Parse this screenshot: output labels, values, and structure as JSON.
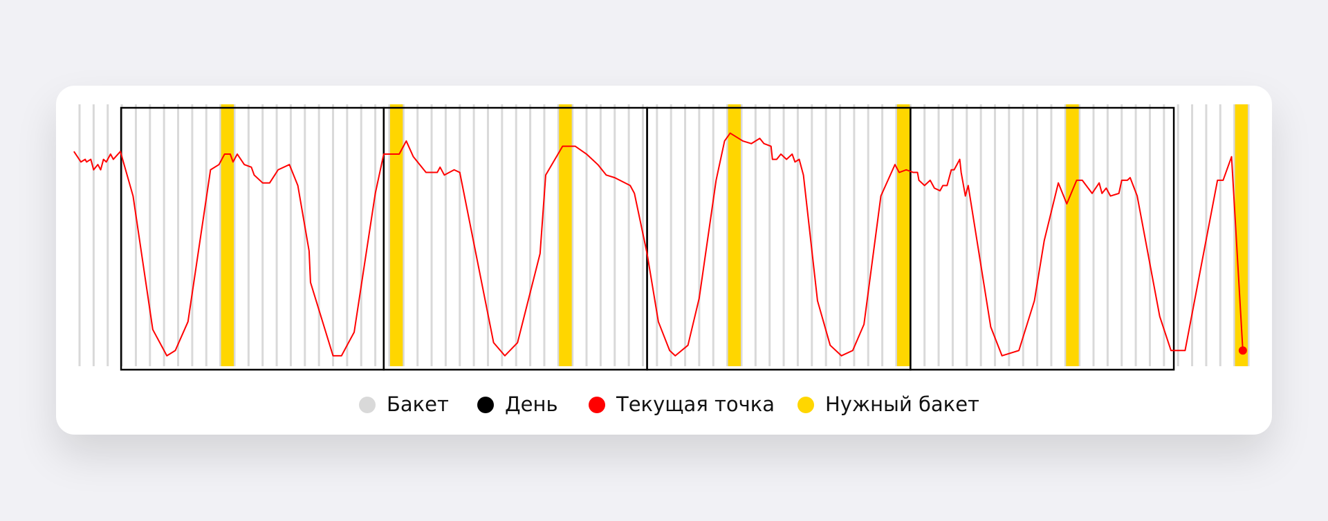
{
  "chart_data": {
    "type": "line",
    "bucket_count": 83,
    "bucket_color": "#d9d9d9",
    "target_buckets": [
      10,
      22,
      34,
      46,
      58,
      70,
      82
    ],
    "target_color": "#ffd600",
    "days": [
      [
        2.95,
        21.6
      ],
      [
        21.6,
        40.3
      ],
      [
        40.3,
        59
      ],
      [
        59,
        77.7
      ]
    ],
    "day_color": "#000000",
    "xlim": [
      0,
      83
    ],
    "ylim": [
      0,
      100
    ],
    "series": [
      {
        "name": "Текущая точка",
        "color": "#ff0000",
        "x": [
          -0.4,
          0.1,
          0.4,
          0.5,
          0.8,
          1.0,
          1.3,
          1.5,
          1.7,
          1.9,
          2.2,
          2.4,
          2.9,
          3.8,
          5.2,
          6.2,
          6.8,
          7.7,
          9.3,
          9.9,
          10.3,
          10.7,
          10.9,
          11.2,
          11.7,
          12.2,
          12.4,
          13.0,
          13.5,
          14.1,
          14.9,
          15.5,
          16.3,
          16.4,
          18.0,
          18.6,
          19.5,
          21.0,
          21.6,
          22.7,
          23.2,
          23.7,
          24.6,
          25.4,
          25.6,
          25.9,
          26.6,
          27.0,
          29.4,
          30.2,
          31.1,
          32.7,
          33.1,
          34.3,
          35.2,
          36.0,
          36.8,
          37.4,
          38.0,
          39.1,
          39.4,
          40.3,
          41.1,
          41.9,
          42.3,
          43.2,
          44.0,
          45.2,
          45.8,
          46.2,
          47.1,
          47.7,
          48.3,
          48.6,
          49.1,
          49.2,
          49.5,
          49.8,
          50.2,
          50.6,
          50.8,
          51.1,
          51.4,
          52.4,
          53.3,
          54.1,
          54.9,
          55.7,
          56.9,
          57.9,
          58.2,
          58.7,
          59.2,
          59.5,
          59.6,
          60.0,
          60.4,
          60.7,
          61.1,
          61.3,
          61.6,
          61.9,
          62.1,
          62.5,
          62.6,
          62.9,
          63.1,
          64.7,
          65.5,
          66.7,
          67.8,
          68.5,
          69.5,
          70.1,
          70.8,
          71.2,
          71.9,
          72.4,
          72.6,
          72.9,
          73.2,
          73.8,
          74.0,
          74.4,
          74.6,
          75.1,
          76.7,
          77.5,
          78.5,
          80.8,
          81.2,
          81.8,
          82.6
        ],
        "values": [
          82,
          78,
          79,
          78,
          79,
          75,
          77,
          75,
          79,
          78,
          81,
          79,
          82,
          65,
          14,
          4,
          6,
          17,
          75,
          77,
          81,
          81,
          78,
          81,
          77,
          76,
          73,
          70,
          70,
          75,
          77,
          69,
          44,
          32,
          4,
          4,
          13,
          66,
          81,
          81,
          86,
          80,
          74,
          74,
          76,
          73,
          75,
          74,
          9,
          4,
          9,
          43,
          73,
          84,
          84,
          81,
          77,
          73,
          72,
          69,
          66,
          43,
          17,
          6,
          4,
          8,
          26,
          71,
          86,
          89,
          86,
          85,
          87,
          85,
          84,
          79,
          79,
          81,
          79,
          81,
          78,
          79,
          73,
          25,
          8,
          4,
          6,
          16,
          65,
          77,
          74,
          75,
          74,
          74,
          71,
          69,
          71,
          68,
          67,
          69,
          69,
          75,
          75,
          79,
          74,
          65,
          69,
          15,
          4,
          6,
          25,
          48,
          70,
          62,
          71,
          71,
          66,
          70,
          66,
          68,
          65,
          66,
          71,
          71,
          72,
          65,
          19,
          6,
          6,
          71,
          71,
          80,
          6
        ]
      }
    ],
    "legend": [
      {
        "name": "Бакет",
        "color": "#d9d9d9"
      },
      {
        "name": "День",
        "color": "#000000"
      },
      {
        "name": "Текущая точка",
        "color": "#ff0000"
      },
      {
        "name": "Нужный бакет",
        "color": "#ffd600"
      }
    ]
  }
}
